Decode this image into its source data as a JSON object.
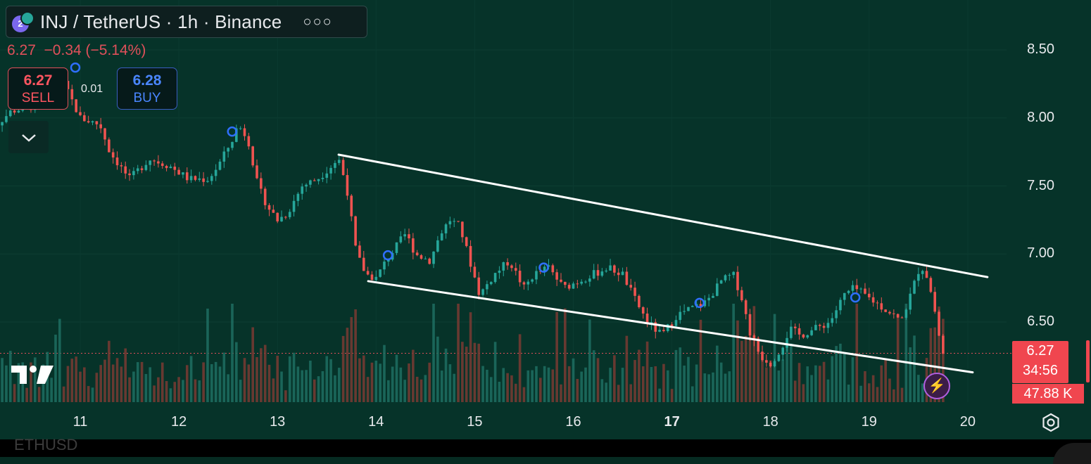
{
  "header": {
    "title": "INJ / TetherUS · 1h · Binance",
    "more_label": "○○○",
    "quote": "6.27  −0.34 (−5.14%)"
  },
  "trade": {
    "sell_price": "6.27",
    "sell_label": "SELL",
    "buy_price": "6.28",
    "buy_label": "BUY",
    "spread": "0.01",
    "collapse_icon": "chevron-down-icon"
  },
  "chart_data": {
    "type": "candlestick",
    "title": "",
    "price_axis": {
      "ticks": [
        "8.50",
        "8.00",
        "7.50",
        "7.00",
        "6.50"
      ],
      "range": [
        5.97,
        8.84
      ]
    },
    "time_axis": {
      "ticks": [
        {
          "label": "11",
          "day": 11,
          "bold": false
        },
        {
          "label": "12",
          "day": 12,
          "bold": false
        },
        {
          "label": "13",
          "day": 13,
          "bold": false
        },
        {
          "label": "14",
          "day": 14,
          "bold": false
        },
        {
          "label": "15",
          "day": 15,
          "bold": false
        },
        {
          "label": "16",
          "day": 16,
          "bold": false
        },
        {
          "label": "17",
          "day": 17,
          "bold": true
        },
        {
          "label": "18",
          "day": 18,
          "bold": false
        },
        {
          "label": "19",
          "day": 19,
          "bold": false
        },
        {
          "label": "20",
          "day": 20,
          "bold": false
        }
      ]
    },
    "price_path": [
      [
        10.0,
        7.85
      ],
      [
        10.3,
        8.05
      ],
      [
        10.6,
        8.1
      ],
      [
        10.8,
        8.3
      ],
      [
        11.0,
        8.0
      ],
      [
        11.2,
        7.95
      ],
      [
        11.3,
        7.75
      ],
      [
        11.5,
        7.55
      ],
      [
        11.7,
        7.7
      ],
      [
        11.9,
        7.65
      ],
      [
        12.1,
        7.55
      ],
      [
        12.3,
        7.55
      ],
      [
        12.4,
        7.65
      ],
      [
        12.55,
        7.85
      ],
      [
        12.6,
        7.95
      ],
      [
        12.7,
        7.85
      ],
      [
        12.8,
        7.5
      ],
      [
        12.9,
        7.35
      ],
      [
        13.0,
        7.25
      ],
      [
        13.1,
        7.3
      ],
      [
        13.25,
        7.5
      ],
      [
        13.4,
        7.55
      ],
      [
        13.55,
        7.65
      ],
      [
        13.62,
        7.7
      ],
      [
        13.7,
        7.5
      ],
      [
        13.8,
        7.0
      ],
      [
        13.9,
        6.85
      ],
      [
        14.0,
        6.82
      ],
      [
        14.1,
        6.95
      ],
      [
        14.2,
        7.05
      ],
      [
        14.3,
        7.15
      ],
      [
        14.4,
        7.0
      ],
      [
        14.55,
        6.95
      ],
      [
        14.65,
        7.15
      ],
      [
        14.75,
        7.25
      ],
      [
        14.85,
        7.2
      ],
      [
        14.95,
        6.95
      ],
      [
        15.05,
        6.7
      ],
      [
        15.2,
        6.85
      ],
      [
        15.35,
        6.95
      ],
      [
        15.5,
        6.75
      ],
      [
        15.6,
        6.85
      ],
      [
        15.75,
        6.9
      ],
      [
        15.9,
        6.75
      ],
      [
        16.05,
        6.8
      ],
      [
        16.2,
        6.85
      ],
      [
        16.35,
        6.9
      ],
      [
        16.5,
        6.85
      ],
      [
        16.6,
        6.7
      ],
      [
        16.75,
        6.5
      ],
      [
        16.9,
        6.4
      ],
      [
        17.05,
        6.55
      ],
      [
        17.2,
        6.6
      ],
      [
        17.35,
        6.65
      ],
      [
        17.5,
        6.8
      ],
      [
        17.62,
        6.85
      ],
      [
        17.7,
        6.7
      ],
      [
        17.8,
        6.4
      ],
      [
        17.9,
        6.25
      ],
      [
        18.0,
        6.2
      ],
      [
        18.1,
        6.3
      ],
      [
        18.2,
        6.45
      ],
      [
        18.3,
        6.4
      ],
      [
        18.45,
        6.45
      ],
      [
        18.6,
        6.5
      ],
      [
        18.75,
        6.7
      ],
      [
        18.85,
        6.75
      ],
      [
        18.95,
        6.7
      ],
      [
        19.05,
        6.65
      ],
      [
        19.15,
        6.6
      ],
      [
        19.25,
        6.55
      ],
      [
        19.32,
        6.5
      ],
      [
        19.42,
        6.7
      ],
      [
        19.52,
        6.92
      ],
      [
        19.58,
        6.85
      ],
      [
        19.65,
        6.65
      ],
      [
        19.72,
        6.35
      ],
      [
        19.75,
        6.27
      ]
    ],
    "volume_axis_max": 100,
    "trendlines": [
      {
        "from": [
          13.62,
          7.73
        ],
        "to": [
          20.2,
          6.83
        ]
      },
      {
        "from": [
          13.92,
          6.8
        ],
        "to": [
          20.05,
          6.13
        ]
      }
    ],
    "markers": [
      {
        "day": 10.95,
        "price": 8.37
      },
      {
        "day": 12.54,
        "price": 7.9
      },
      {
        "day": 14.12,
        "price": 6.99
      },
      {
        "day": 15.7,
        "price": 6.9
      },
      {
        "day": 17.28,
        "price": 6.64
      },
      {
        "day": 18.86,
        "price": 6.68
      }
    ],
    "current_price_line": 6.27,
    "last_price": "6.27",
    "countdown": "34:56",
    "volume_label": "47.88 K",
    "colors": {
      "up": "#26a69a",
      "down": "#ef5350",
      "trendline": "#ffffff",
      "marker": "#2f6fff"
    }
  },
  "footer": {
    "ticker": "ETHUSD",
    "settings_icon": "settings-hexagon-icon",
    "lightning_icon": "lightning-icon",
    "logo_icon": "tradingview-logo-icon"
  }
}
